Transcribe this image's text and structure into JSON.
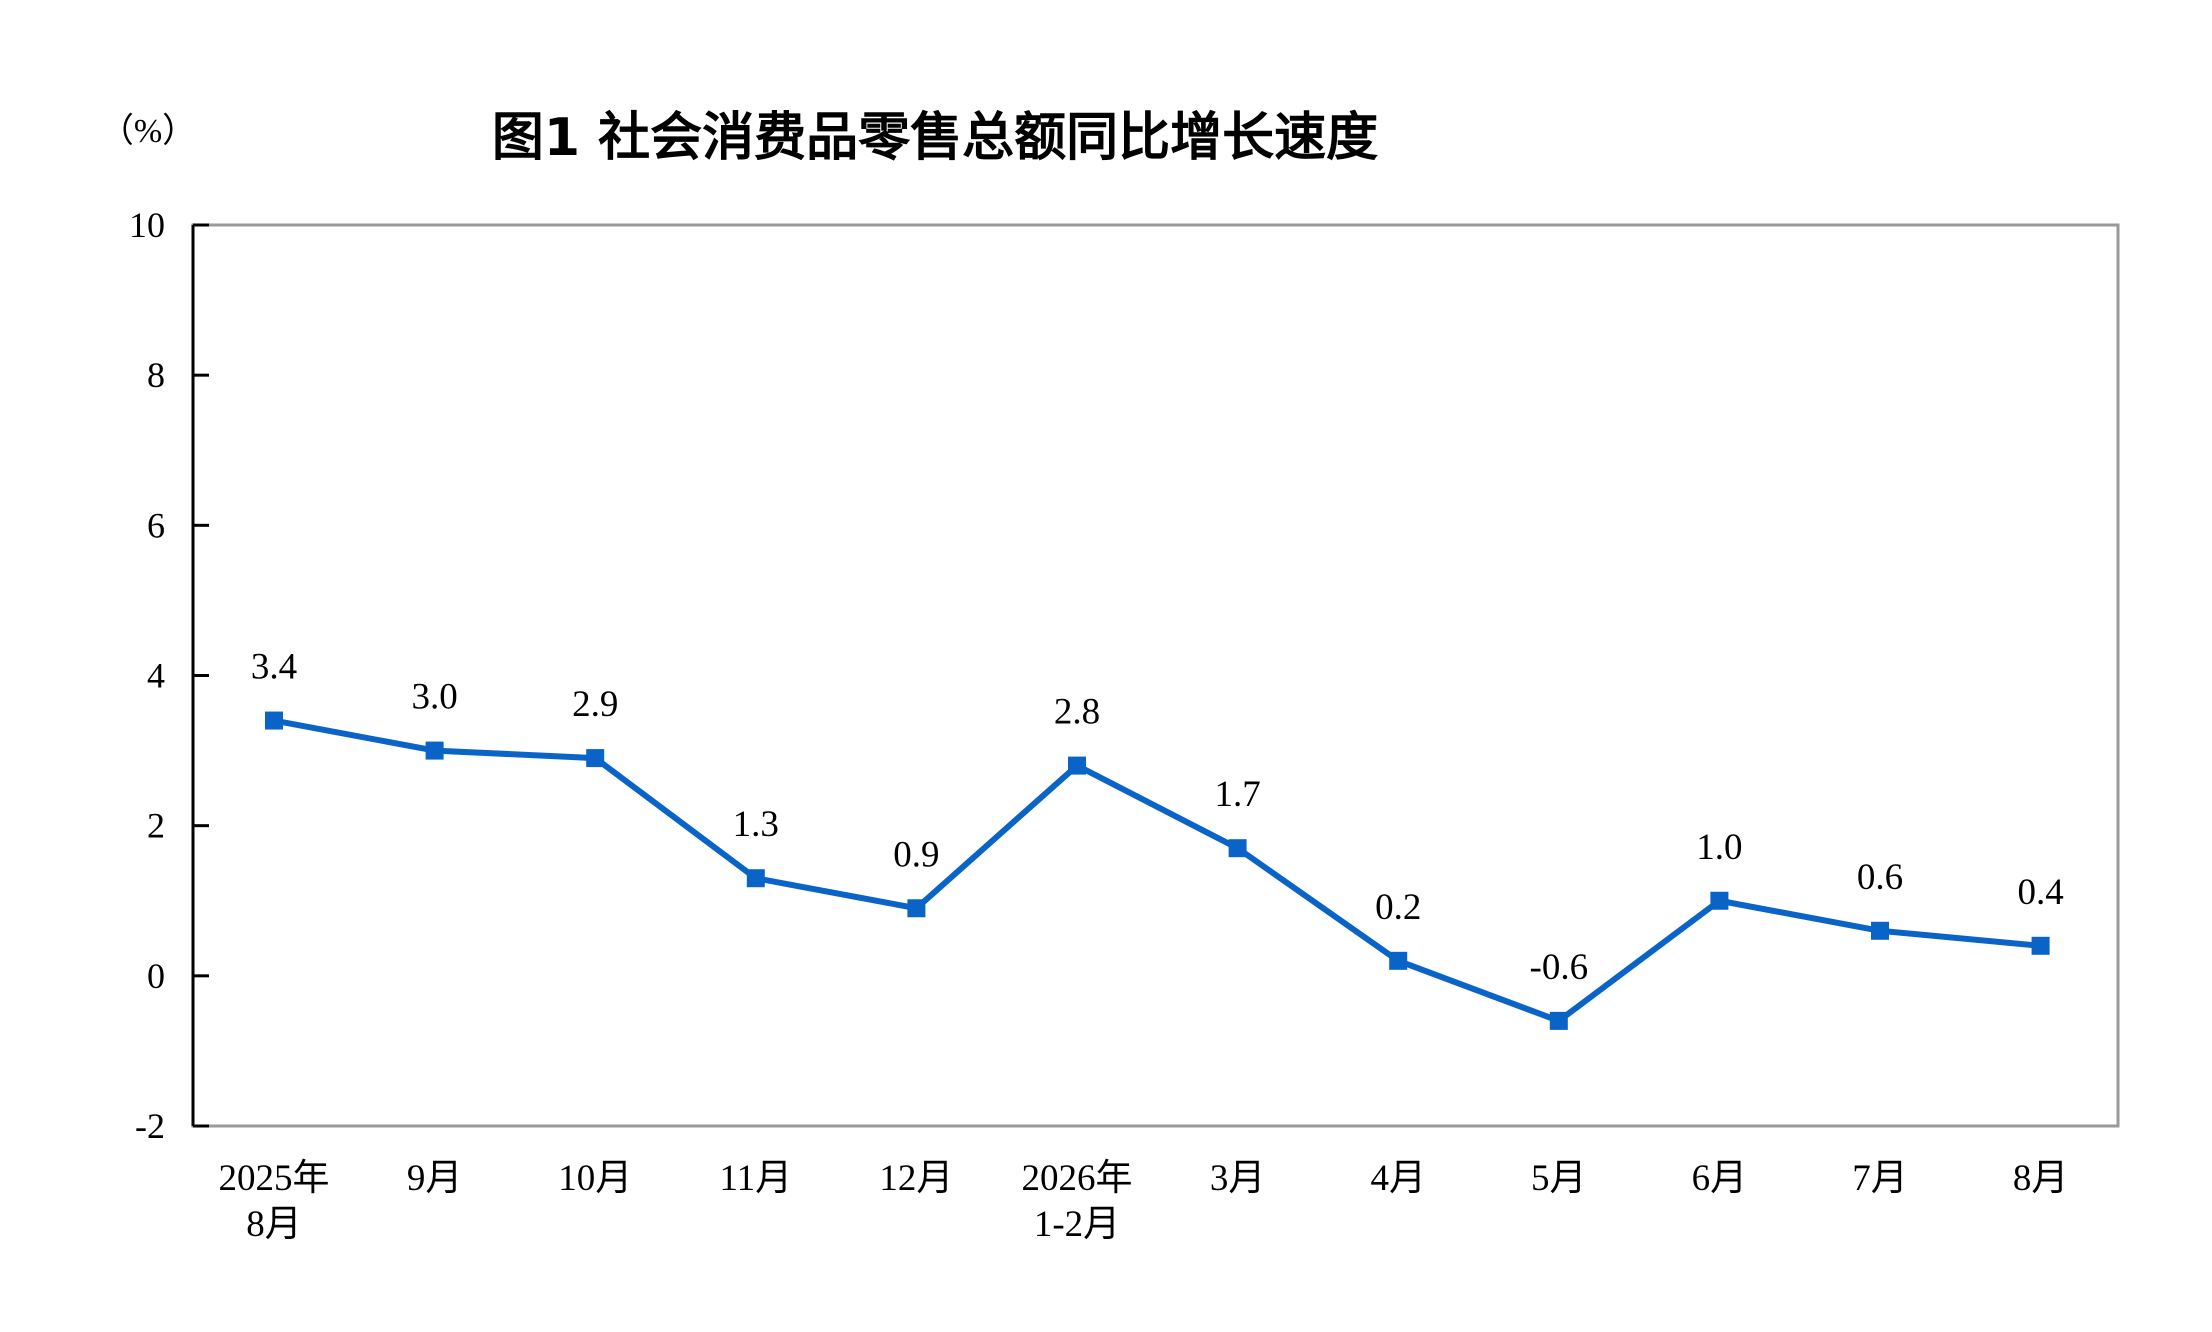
{
  "chart_data": {
    "type": "line",
    "title": "图1 社会消费品零售总额同比增长速度",
    "ylabel": "（%）",
    "ylim": [
      -2,
      10
    ],
    "yticks": [
      -2,
      0,
      2,
      4,
      6,
      8,
      10
    ],
    "categories": [
      [
        "2025年",
        "8月"
      ],
      [
        "9月"
      ],
      [
        "10月"
      ],
      [
        "11月"
      ],
      [
        "12月"
      ],
      [
        "2026年",
        "1-2月"
      ],
      [
        "3月"
      ],
      [
        "4月"
      ],
      [
        "5月"
      ],
      [
        "6月"
      ],
      [
        "7月"
      ],
      [
        "8月"
      ]
    ],
    "series": [
      {
        "values": [
          3.4,
          3.0,
          2.9,
          1.3,
          0.9,
          2.8,
          1.7,
          0.2,
          -0.6,
          1.0,
          0.6,
          0.4
        ],
        "labels": [
          "3.4",
          "3.0",
          "2.9",
          "1.3",
          "0.9",
          "2.8",
          "1.7",
          "0.2",
          "-0.6",
          "1.0",
          "0.6",
          "0.4"
        ],
        "color": "#0a64c8"
      }
    ],
    "grid": false,
    "legend": "none"
  }
}
